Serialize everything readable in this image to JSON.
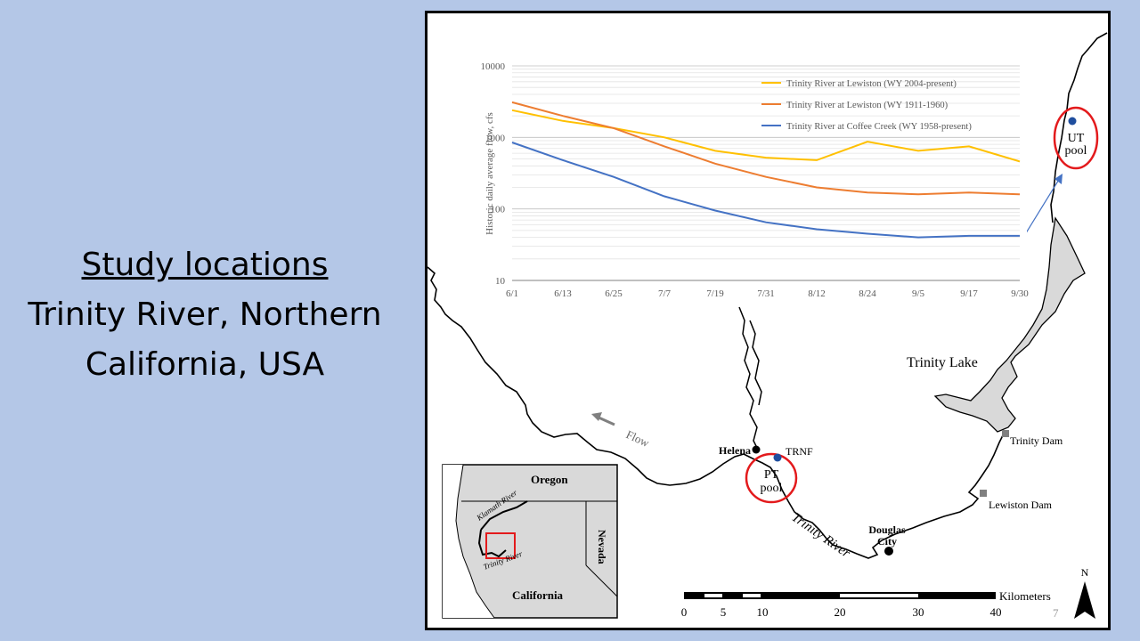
{
  "slide": {
    "title_underlined": "Study locations",
    "subtitle_line1": "Trinity River, Northern",
    "subtitle_line2": "California, USA",
    "page_number": "7"
  },
  "map": {
    "labels": {
      "up_pool_1": "UT",
      "up_pool_2": "pool",
      "pt_pool_1": "PT",
      "pt_pool_2": "pool",
      "helena": "Helena",
      "trnf": "TRNF",
      "trinity_lake": "Trinity Lake",
      "trinity_dam": "Trinity Dam",
      "lewiston_dam": "Lewiston Dam",
      "douglas_city_1": "Douglas",
      "douglas_city_2": "City",
      "trinity_river": "Trinity River",
      "flow": "Flow",
      "north": "N"
    },
    "scale": {
      "unit": "Kilometers",
      "ticks": [
        "0",
        "5",
        "10",
        "20",
        "30",
        "40"
      ]
    },
    "inset": {
      "oregon": "Oregon",
      "nevada": "Nevada",
      "california": "California",
      "klamath_river": "Klamath River",
      "trinity_river": "Trinity River"
    },
    "colors": {
      "lake_fill": "#d9d9d9",
      "pool_circle": "#e31a1c",
      "site_dot": "#1f4e9e",
      "arrow": "#4472c4"
    }
  },
  "chart_data": {
    "type": "line",
    "ylabel": "Historic daily average flow, cfs",
    "xlabel": "",
    "yscale": "log",
    "ylim": [
      10,
      10000
    ],
    "y_ticks": [
      "10",
      "100",
      "1000",
      "10000"
    ],
    "categories": [
      "6/1",
      "6/13",
      "6/25",
      "7/7",
      "7/19",
      "7/31",
      "8/12",
      "8/24",
      "9/5",
      "9/17",
      "9/30"
    ],
    "legend_position": "top-right",
    "grid": true,
    "series": [
      {
        "name": "Trinity River at Lewiston (WY 2004-present)",
        "color": "#ffc000",
        "values": [
          2400,
          1700,
          1350,
          1000,
          650,
          520,
          480,
          870,
          650,
          750,
          460
        ]
      },
      {
        "name": "Trinity River at Lewiston (WY 1911-1960)",
        "color": "#ed7d31",
        "values": [
          3100,
          2000,
          1350,
          750,
          430,
          280,
          200,
          170,
          160,
          170,
          160
        ]
      },
      {
        "name": "Trinity River at Coffee Creek (WY 1958-present)",
        "color": "#4472c4",
        "values": [
          850,
          480,
          280,
          150,
          95,
          65,
          52,
          45,
          40,
          42,
          42
        ]
      }
    ]
  }
}
